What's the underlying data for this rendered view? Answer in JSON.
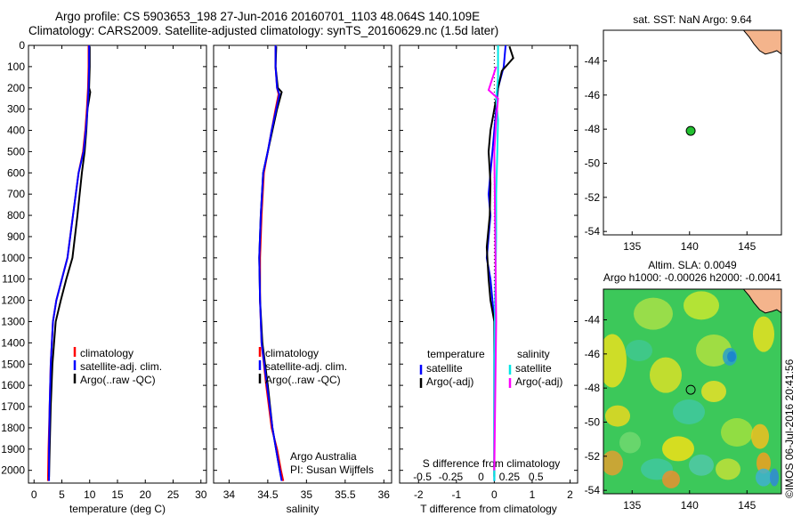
{
  "title_line1": "Argo profile: CS 5903653_198 27-Jun-2016 20160701_1103 48.064S 140.109E",
  "title_line2": "Climatology: CARS2009. Satellite-adjusted climatology: synTS_20160629.nc (1.5d later)",
  "stamp": "©IMOS 06-Jul-2016 20:41:56",
  "colors": {
    "climatology": "#ff0000",
    "satellite": "#0000ff",
    "argo": "#000000",
    "sat_salt": "#00e5e5",
    "argo_salt": "#ff00ff"
  },
  "chart_data": [
    {
      "type": "line",
      "name": "temperature",
      "xlabel": "temperature (deg C)",
      "xlim": [
        -1,
        31
      ],
      "ylim": [
        2060,
        0
      ],
      "xticks": [
        0,
        5,
        10,
        15,
        20,
        25,
        30
      ],
      "xtick_labels": [
        "0",
        "5",
        "10",
        "15",
        "20",
        "25",
        "30"
      ],
      "yticks": [
        0,
        100,
        200,
        300,
        400,
        500,
        600,
        700,
        800,
        900,
        1000,
        1100,
        1200,
        1300,
        1400,
        1500,
        1600,
        1700,
        1800,
        1900,
        2000
      ],
      "ytick_labels": [
        "0",
        "100",
        "200",
        "300",
        "400",
        "500",
        "600",
        "700",
        "800",
        "900",
        "1000",
        "1100",
        "1200",
        "1300",
        "1400",
        "1500",
        "1600",
        "1700",
        "1800",
        "1900",
        "2000"
      ],
      "legend": [
        "climatology",
        "satellite-adj. clim.",
        "Argo(..raw -QC)"
      ],
      "series": [
        {
          "name": "climatology",
          "color": "#ff0000",
          "x": [
            9.8,
            9.8,
            9.7,
            9.5,
            9.2,
            8.8,
            8.0,
            7.0,
            6.0,
            5.0,
            4.0,
            3.4,
            3.0,
            2.8,
            2.6,
            2.5
          ],
          "y": [
            0,
            100,
            200,
            300,
            400,
            500,
            600,
            800,
            1000,
            1100,
            1200,
            1300,
            1500,
            1700,
            1900,
            2050
          ]
        },
        {
          "name": "Argo",
          "color": "#000000",
          "x": [
            10.0,
            10.0,
            9.9,
            10.1,
            9.6,
            9.4,
            9.1,
            8.6,
            7.8,
            6.9,
            5.8,
            4.8,
            3.9,
            3.3,
            3.0,
            2.8,
            2.7
          ],
          "y": [
            5,
            100,
            200,
            220,
            300,
            400,
            500,
            600,
            800,
            1000,
            1100,
            1200,
            1300,
            1500,
            1700,
            1900,
            2030
          ]
        },
        {
          "name": "satellite",
          "color": "#0000ff",
          "x": [
            9.9,
            9.9,
            9.8,
            9.6,
            9.3,
            8.9,
            8.0,
            7.0,
            6.0,
            5.0,
            4.0,
            3.4,
            3.0,
            2.8,
            2.7,
            2.7
          ],
          "y": [
            0,
            100,
            200,
            300,
            400,
            500,
            600,
            800,
            1000,
            1100,
            1200,
            1300,
            1500,
            1700,
            1900,
            2050
          ]
        }
      ]
    },
    {
      "type": "line",
      "name": "salinity",
      "xlabel": "salinity",
      "xlim": [
        33.8,
        36.1
      ],
      "ylim": [
        2060,
        0
      ],
      "xticks": [
        34,
        34.5,
        35,
        35.5,
        36
      ],
      "xtick_labels": [
        "34",
        "34.5",
        "35",
        "35.5",
        "36"
      ],
      "legend": [
        "climatology",
        "satellite-adj. clim.",
        "Argo(..raw -QC)"
      ],
      "annotation": [
        "Argo Australia",
        "PI: Susan Wijffels"
      ],
      "series": [
        {
          "name": "climatology",
          "color": "#ff0000",
          "x": [
            34.6,
            34.6,
            34.62,
            34.64,
            34.6,
            34.55,
            34.5,
            34.45,
            34.42,
            34.4,
            34.4,
            34.42,
            34.48,
            34.55,
            34.62,
            34.67,
            34.7
          ],
          "y": [
            0,
            100,
            200,
            230,
            300,
            400,
            500,
            600,
            800,
            1000,
            1200,
            1400,
            1600,
            1800,
            1900,
            2000,
            2050
          ]
        },
        {
          "name": "Argo",
          "color": "#000000",
          "x": [
            34.61,
            34.6,
            34.63,
            34.68,
            34.62,
            34.56,
            34.5,
            34.44,
            34.41,
            34.39,
            34.4,
            34.43,
            34.5,
            34.56,
            34.63,
            34.67
          ],
          "y": [
            5,
            100,
            200,
            220,
            300,
            400,
            500,
            600,
            800,
            1000,
            1200,
            1400,
            1600,
            1800,
            1950,
            2030
          ]
        },
        {
          "name": "satellite",
          "color": "#0000ff",
          "x": [
            34.6,
            34.6,
            34.62,
            34.65,
            34.61,
            34.55,
            34.5,
            34.44,
            34.41,
            34.39,
            34.4,
            34.42,
            34.49,
            34.56,
            34.63,
            34.68
          ],
          "y": [
            0,
            100,
            200,
            230,
            300,
            400,
            500,
            600,
            800,
            1000,
            1200,
            1400,
            1600,
            1800,
            1950,
            2050
          ]
        }
      ]
    },
    {
      "type": "line",
      "name": "difference",
      "xlabel": "T difference from climatology",
      "xlabel_top": "S difference from climatology",
      "xlim": [
        -2.5,
        2.2
      ],
      "ylim": [
        2060,
        0
      ],
      "xticks": [
        -2,
        -1,
        0,
        1,
        2
      ],
      "xtick_labels": [
        "-2",
        "-1",
        "0",
        "1",
        "2"
      ],
      "sticks": [
        -1.9,
        -1.15,
        -0.35,
        0.4,
        1.1
      ],
      "stick_labels": [
        "-0.5",
        "-0.25",
        "0",
        "0.25",
        "0.5"
      ],
      "legend_left": {
        "title": "temperature",
        "items": [
          "satellite",
          "Argo(-adj)"
        ]
      },
      "legend_right": {
        "title": "salinity",
        "items": [
          "satellite",
          "Argo(-adj)"
        ]
      },
      "series": [
        {
          "name": "T satellite",
          "color": "#0000ff",
          "x": [
            0.3,
            0.25,
            0.1,
            0.05,
            0.0,
            -0.05,
            -0.1,
            -0.15,
            -0.1,
            -0.15,
            -0.2,
            -0.1,
            -0.05,
            0.0,
            0.0,
            0.0
          ],
          "y": [
            0,
            100,
            200,
            300,
            400,
            500,
            600,
            700,
            800,
            900,
            1000,
            1100,
            1200,
            1300,
            1600,
            2050
          ]
        },
        {
          "name": "T Argo",
          "color": "#000000",
          "x": [
            0.4,
            0.5,
            0.2,
            0.1,
            0.0,
            -0.1,
            -0.15,
            -0.1,
            -0.12,
            -0.2,
            -0.15,
            -0.1,
            0.0,
            0.0
          ],
          "y": [
            5,
            60,
            120,
            200,
            300,
            400,
            500,
            650,
            800,
            950,
            1100,
            1200,
            1300,
            2030
          ]
        },
        {
          "name": "S satellite",
          "color": "#00e5e5",
          "x": [
            0.1,
            0.1,
            0.05,
            0.1,
            0.08,
            0.05,
            0.05,
            0.02,
            0.0,
            0.0
          ],
          "y": [
            0,
            150,
            250,
            350,
            500,
            700,
            900,
            1200,
            1500,
            2050
          ]
        },
        {
          "name": "S Argo",
          "color": "#ff00ff",
          "x": [
            0.05,
            -0.15,
            0.1,
            0.05,
            0.0,
            0.05,
            0.0
          ],
          "y": [
            100,
            210,
            250,
            350,
            500,
            1300,
            2000
          ]
        }
      ]
    }
  ],
  "map_top": {
    "title": "sat. SST: NaN Argo: 9.64",
    "xticks": [
      135,
      140,
      145
    ],
    "yticks": [
      -44,
      -46,
      -48,
      -50,
      -52,
      -54
    ],
    "xtick_labels": [
      "135",
      "140",
      "145"
    ],
    "ytick_labels": [
      "-44",
      "-46",
      "-48",
      "-50",
      "-52",
      "-54"
    ],
    "xlim": [
      132.5,
      148
    ],
    "ylim": [
      -54.2,
      -42.2
    ],
    "point": {
      "lon": 140.1,
      "lat": -48.1
    }
  },
  "map_bottom": {
    "title1": "Altim. SLA: 0.0049",
    "title2": "Argo h1000: -0.00026 h2000: -0.0041",
    "xticks": [
      135,
      140,
      145
    ],
    "yticks": [
      -44,
      -46,
      -48,
      -50,
      -52,
      -54
    ],
    "xtick_labels": [
      "135",
      "140",
      "145"
    ],
    "ytick_labels": [
      "-44",
      "-46",
      "-48",
      "-50",
      "-52",
      "-54"
    ],
    "xlim": [
      132.5,
      148
    ],
    "ylim": [
      -54.2,
      -42.2
    ],
    "point": {
      "lon": 140.1,
      "lat": -48.1
    }
  }
}
